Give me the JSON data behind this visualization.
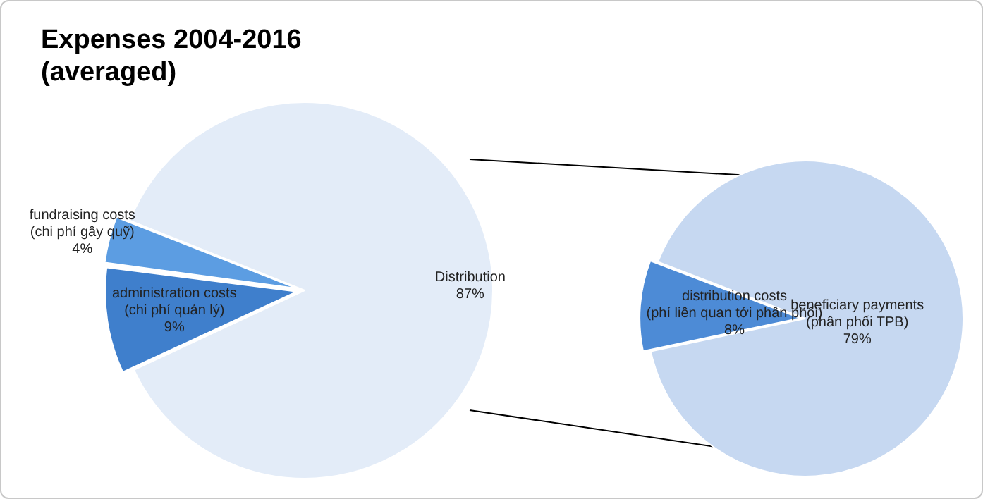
{
  "chart_data": [
    {
      "type": "pie",
      "title": "Expenses 2004-2016\n(averaged)",
      "categories": [
        "administration costs (chi phí quản lý)",
        "fundraising costs (chi phí gây quỹ)",
        "Distribution"
      ],
      "values": [
        9,
        4,
        87
      ],
      "colors": [
        "#3f7fcc",
        "#5c9de2",
        "#e3ecf8"
      ],
      "value_labels": [
        "9%",
        "4%",
        "87%"
      ]
    },
    {
      "type": "pie",
      "categories": [
        "distribution costs (phí liên quan tới phân phối)",
        "beneficiary payments (phân phối TPB)"
      ],
      "values": [
        8,
        79
      ],
      "colors": [
        "#4d8bd6",
        "#c6d8f1"
      ],
      "value_labels": [
        "8%",
        "79%"
      ]
    }
  ]
}
